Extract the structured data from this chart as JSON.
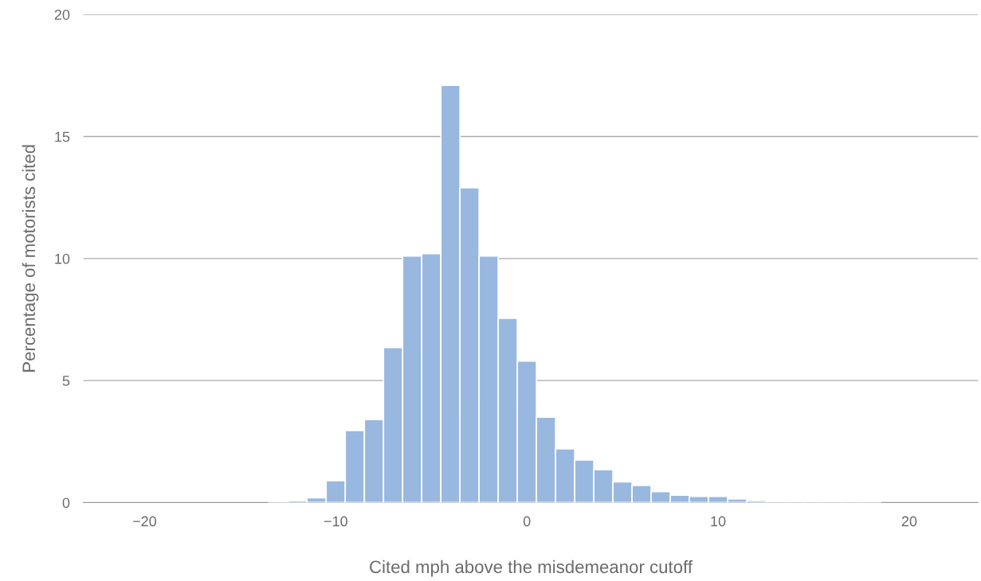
{
  "chart_data": {
    "type": "histogram",
    "xlabel": "Cited mph above the misdemeanor cutoff",
    "ylabel": "Percentage of motorists cited",
    "bins": [
      -16.5,
      -15.5,
      -14.5,
      -13.5,
      -12.5,
      -11.5,
      -10.5,
      -9.5,
      -8.5,
      -7.5,
      -6.5,
      -5.5,
      -4.5,
      -3.5,
      -2.5,
      -1.5,
      -0.5,
      0.5,
      1.5,
      2.5,
      3.5,
      4.5,
      5.5,
      6.5,
      7.5,
      8.5,
      9.5,
      10.5,
      11.5,
      12.5,
      13.5,
      14.5,
      15.5,
      16.5,
      17.5,
      18.5,
      19.5,
      20.5
    ],
    "values": [
      null,
      null,
      null,
      0.03,
      0.08,
      0.2,
      0.9,
      2.95,
      3.4,
      6.35,
      10.1,
      10.2,
      17.1,
      12.9,
      10.1,
      7.55,
      5.8,
      3.5,
      2.2,
      1.75,
      1.35,
      0.85,
      0.7,
      0.45,
      0.3,
      0.25,
      0.25,
      0.15,
      0.08,
      0.03,
      0.03,
      0.03,
      0.03,
      0.03,
      0.03,
      null,
      null
    ],
    "color": "#99b8df",
    "xlim": [
      -23.2,
      23.6
    ],
    "xticks": [
      {
        "value": -20,
        "label": "−20"
      },
      {
        "value": -10,
        "label": "−10"
      },
      0,
      10,
      20
    ],
    "ylim": [
      0,
      20
    ],
    "yticks": [
      0,
      5,
      10,
      15,
      20
    ],
    "grid": "y"
  }
}
